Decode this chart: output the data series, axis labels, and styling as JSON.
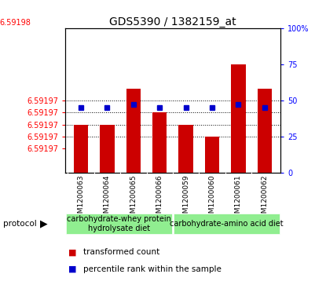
{
  "title": "GDS5390 / 1382159_at",
  "samples": [
    "GSM1200063",
    "GSM1200064",
    "GSM1200065",
    "GSM1200066",
    "GSM1200059",
    "GSM1200060",
    "GSM1200061",
    "GSM1200062"
  ],
  "red_values": [
    6.591972,
    6.591972,
    6.591975,
    6.591973,
    6.591972,
    6.591971,
    6.591977,
    6.591975
  ],
  "blue_values": [
    45,
    45,
    47,
    45,
    45,
    45,
    47,
    45
  ],
  "y_min": 6.591968,
  "y_max": 6.59198,
  "y_ticks": [
    6.59197,
    6.591971,
    6.591972,
    6.591973,
    6.591974
  ],
  "y_tick_labels": [
    "6.59197",
    "6.59197",
    "6.59197",
    "6.59197",
    "6.59197"
  ],
  "y_top_label": "6.59198",
  "right_y_ticks": [
    0,
    25,
    50,
    75,
    100
  ],
  "right_y_tick_labels": [
    "0",
    "25",
    "50",
    "75",
    "100%"
  ],
  "protocols": [
    {
      "label": "carbohydrate-whey protein\nhydrolysate diet",
      "start": 0,
      "end": 4,
      "color": "#90EE90"
    },
    {
      "label": "carbohydrate-amino acid diet",
      "start": 4,
      "end": 8,
      "color": "#90EE90"
    }
  ],
  "bar_color": "#CC0000",
  "dot_color": "#0000CC",
  "bar_width": 0.55,
  "background_color": "#ffffff",
  "title_fontsize": 10,
  "tick_fontsize": 7,
  "legend_fontsize": 7.5,
  "protocol_fontsize": 7,
  "sample_fontsize": 6.5
}
